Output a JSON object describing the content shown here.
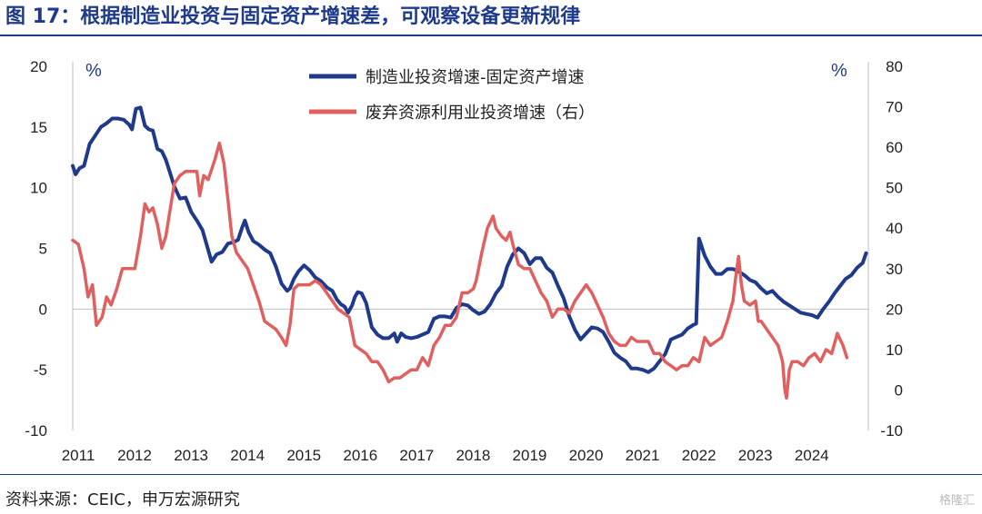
{
  "title": "图 17：根据制造业投资与固定资产增速差，可观察设备更新规律",
  "source": "资料来源：CEIC，申万宏源研究",
  "watermark": "格隆汇",
  "chart_data": {
    "type": "line",
    "x_ticks": [
      "2011",
      "2012",
      "2013",
      "2014",
      "2015",
      "2016",
      "2017",
      "2018",
      "2019",
      "2020",
      "2021",
      "2022",
      "2023",
      "2024"
    ],
    "left_axis": {
      "unit": "%",
      "range": [
        -10,
        20
      ],
      "ticks": [
        20,
        15,
        10,
        5,
        0,
        -5,
        -10
      ]
    },
    "right_axis": {
      "unit": "%",
      "range": [
        -10,
        80
      ],
      "ticks": [
        80,
        70,
        60,
        50,
        40,
        30,
        20,
        10,
        0,
        -10
      ]
    },
    "legend_position": "top-center",
    "series": [
      {
        "name": "制造业投资增速-固定资产增速",
        "axis": "left",
        "color": "#1f3a8a",
        "points": [
          [
            2011.0,
            11.8
          ],
          [
            2011.05,
            11.1
          ],
          [
            2011.12,
            11.6
          ],
          [
            2011.2,
            11.8
          ],
          [
            2011.3,
            13.6
          ],
          [
            2011.4,
            14.3
          ],
          [
            2011.5,
            15.0
          ],
          [
            2011.6,
            15.3
          ],
          [
            2011.7,
            15.7
          ],
          [
            2011.8,
            15.7
          ],
          [
            2011.9,
            15.6
          ],
          [
            2012.0,
            15.2
          ],
          [
            2012.05,
            14.8
          ],
          [
            2012.12,
            16.5
          ],
          [
            2012.2,
            16.6
          ],
          [
            2012.28,
            15.1
          ],
          [
            2012.35,
            14.8
          ],
          [
            2012.42,
            14.7
          ],
          [
            2012.5,
            13.2
          ],
          [
            2012.58,
            13.0
          ],
          [
            2012.65,
            12.3
          ],
          [
            2012.72,
            11.3
          ],
          [
            2012.8,
            10.1
          ],
          [
            2012.9,
            9.1
          ],
          [
            2013.0,
            9.2
          ],
          [
            2013.1,
            8.0
          ],
          [
            2013.2,
            7.3
          ],
          [
            2013.3,
            6.5
          ],
          [
            2013.38,
            5.2
          ],
          [
            2013.46,
            3.9
          ],
          [
            2013.55,
            4.5
          ],
          [
            2013.65,
            4.7
          ],
          [
            2013.75,
            5.4
          ],
          [
            2013.85,
            5.5
          ],
          [
            2013.93,
            5.7
          ],
          [
            2014.0,
            6.7
          ],
          [
            2014.05,
            7.3
          ],
          [
            2014.12,
            6.3
          ],
          [
            2014.2,
            5.6
          ],
          [
            2014.3,
            5.3
          ],
          [
            2014.4,
            4.9
          ],
          [
            2014.5,
            4.6
          ],
          [
            2014.6,
            3.5
          ],
          [
            2014.7,
            2.1
          ],
          [
            2014.8,
            1.5
          ],
          [
            2014.85,
            1.7
          ],
          [
            2014.92,
            2.5
          ],
          [
            2015.0,
            3.1
          ],
          [
            2015.1,
            3.6
          ],
          [
            2015.2,
            3.2
          ],
          [
            2015.3,
            2.6
          ],
          [
            2015.4,
            2.3
          ],
          [
            2015.5,
            1.8
          ],
          [
            2015.6,
            1.5
          ],
          [
            2015.68,
            0.8
          ],
          [
            2015.75,
            0.4
          ],
          [
            2015.82,
            0.2
          ],
          [
            2015.88,
            -0.3
          ],
          [
            2015.95,
            0.3
          ],
          [
            2016.0,
            1.0
          ],
          [
            2016.05,
            1.4
          ],
          [
            2016.12,
            1.3
          ],
          [
            2016.2,
            0.5
          ],
          [
            2016.3,
            -1.5
          ],
          [
            2016.4,
            -2.1
          ],
          [
            2016.5,
            -2.4
          ],
          [
            2016.6,
            -2.4
          ],
          [
            2016.7,
            -2.0
          ],
          [
            2016.75,
            -2.7
          ],
          [
            2016.82,
            -2.0
          ],
          [
            2016.9,
            -2.3
          ],
          [
            2017.0,
            -2.4
          ],
          [
            2017.1,
            -2.3
          ],
          [
            2017.2,
            -2.1
          ],
          [
            2017.3,
            -1.9
          ],
          [
            2017.4,
            -0.8
          ],
          [
            2017.5,
            -0.6
          ],
          [
            2017.6,
            -0.6
          ],
          [
            2017.7,
            -0.7
          ],
          [
            2017.8,
            0.1
          ],
          [
            2017.9,
            0.4
          ],
          [
            2018.0,
            0.3
          ],
          [
            2018.1,
            -0.1
          ],
          [
            2018.2,
            -0.4
          ],
          [
            2018.3,
            -0.2
          ],
          [
            2018.4,
            0.4
          ],
          [
            2018.5,
            1.3
          ],
          [
            2018.6,
            1.9
          ],
          [
            2018.7,
            3.5
          ],
          [
            2018.8,
            4.5
          ],
          [
            2018.9,
            5.0
          ],
          [
            2019.0,
            4.6
          ],
          [
            2019.1,
            3.7
          ],
          [
            2019.2,
            4.2
          ],
          [
            2019.3,
            4.2
          ],
          [
            2019.4,
            3.4
          ],
          [
            2019.5,
            3.0
          ],
          [
            2019.6,
            1.9
          ],
          [
            2019.7,
            0.9
          ],
          [
            2019.8,
            -0.6
          ],
          [
            2019.9,
            -1.7
          ],
          [
            2020.0,
            -2.5
          ],
          [
            2020.1,
            -2.0
          ],
          [
            2020.2,
            -1.5
          ],
          [
            2020.3,
            -1.6
          ],
          [
            2020.4,
            -1.9
          ],
          [
            2020.5,
            -2.7
          ],
          [
            2020.6,
            -3.6
          ],
          [
            2020.7,
            -4.0
          ],
          [
            2020.8,
            -4.3
          ],
          [
            2020.9,
            -4.9
          ],
          [
            2021.0,
            -4.9
          ],
          [
            2021.1,
            -5.0
          ],
          [
            2021.2,
            -5.2
          ],
          [
            2021.3,
            -4.9
          ],
          [
            2021.4,
            -4.3
          ],
          [
            2021.5,
            -3.7
          ],
          [
            2021.6,
            -2.5
          ],
          [
            2021.7,
            -2.3
          ],
          [
            2021.8,
            -2.1
          ],
          [
            2021.9,
            -1.6
          ],
          [
            2022.0,
            -1.3
          ],
          [
            2022.05,
            -1.2
          ],
          [
            2022.1,
            5.8
          ],
          [
            2022.2,
            4.4
          ],
          [
            2022.3,
            3.5
          ],
          [
            2022.4,
            2.9
          ],
          [
            2022.5,
            2.9
          ],
          [
            2022.6,
            3.3
          ],
          [
            2022.7,
            3.3
          ],
          [
            2022.8,
            3.1
          ],
          [
            2022.9,
            2.8
          ],
          [
            2023.0,
            2.4
          ],
          [
            2023.1,
            2.2
          ],
          [
            2023.2,
            1.7
          ],
          [
            2023.3,
            1.3
          ],
          [
            2023.4,
            1.5
          ],
          [
            2023.5,
            1.0
          ],
          [
            2023.6,
            0.6
          ],
          [
            2023.7,
            0.3
          ],
          [
            2023.8,
            0.0
          ],
          [
            2023.9,
            -0.3
          ],
          [
            2024.0,
            -0.4
          ],
          [
            2024.1,
            -0.5
          ],
          [
            2024.2,
            -0.7
          ],
          [
            2024.3,
            0.0
          ],
          [
            2024.4,
            0.6
          ],
          [
            2024.5,
            1.3
          ],
          [
            2024.6,
            1.9
          ],
          [
            2024.7,
            2.5
          ],
          [
            2024.8,
            2.8
          ],
          [
            2024.9,
            3.4
          ],
          [
            2025.0,
            3.8
          ],
          [
            2025.06,
            4.6
          ]
        ]
      },
      {
        "name": "废弃资源利用业投资增速（右）",
        "axis": "right",
        "color": "#e06060",
        "points": [
          [
            2011.0,
            37
          ],
          [
            2011.1,
            36
          ],
          [
            2011.2,
            30
          ],
          [
            2011.27,
            23
          ],
          [
            2011.35,
            26
          ],
          [
            2011.42,
            16
          ],
          [
            2011.52,
            18
          ],
          [
            2011.6,
            23
          ],
          [
            2011.68,
            21
          ],
          [
            2011.78,
            25
          ],
          [
            2011.88,
            30
          ],
          [
            2012.0,
            30
          ],
          [
            2012.1,
            30
          ],
          [
            2012.2,
            38
          ],
          [
            2012.28,
            46
          ],
          [
            2012.35,
            44
          ],
          [
            2012.42,
            45
          ],
          [
            2012.5,
            41
          ],
          [
            2012.58,
            35
          ],
          [
            2012.65,
            38
          ],
          [
            2012.72,
            44
          ],
          [
            2012.8,
            51
          ],
          [
            2012.9,
            53
          ],
          [
            2013.0,
            54
          ],
          [
            2013.1,
            54
          ],
          [
            2013.2,
            54
          ],
          [
            2013.25,
            48
          ],
          [
            2013.32,
            53
          ],
          [
            2013.4,
            52
          ],
          [
            2013.45,
            54
          ],
          [
            2013.52,
            57
          ],
          [
            2013.6,
            61
          ],
          [
            2013.68,
            56
          ],
          [
            2013.75,
            47
          ],
          [
            2013.82,
            38
          ],
          [
            2013.9,
            34
          ],
          [
            2014.0,
            32
          ],
          [
            2014.1,
            30
          ],
          [
            2014.2,
            26
          ],
          [
            2014.3,
            22
          ],
          [
            2014.4,
            17
          ],
          [
            2014.5,
            16
          ],
          [
            2014.6,
            15
          ],
          [
            2014.7,
            13
          ],
          [
            2014.78,
            11
          ],
          [
            2014.85,
            16
          ],
          [
            2014.92,
            25
          ],
          [
            2015.0,
            26
          ],
          [
            2015.1,
            26
          ],
          [
            2015.2,
            26
          ],
          [
            2015.3,
            27
          ],
          [
            2015.4,
            26
          ],
          [
            2015.5,
            24
          ],
          [
            2015.6,
            22
          ],
          [
            2015.7,
            20
          ],
          [
            2015.8,
            19
          ],
          [
            2015.9,
            18
          ],
          [
            2016.0,
            11
          ],
          [
            2016.1,
            10
          ],
          [
            2016.2,
            9
          ],
          [
            2016.3,
            7
          ],
          [
            2016.4,
            7
          ],
          [
            2016.5,
            5
          ],
          [
            2016.6,
            2
          ],
          [
            2016.7,
            3
          ],
          [
            2016.8,
            3
          ],
          [
            2016.9,
            4
          ],
          [
            2017.0,
            5
          ],
          [
            2017.1,
            5
          ],
          [
            2017.2,
            8
          ],
          [
            2017.3,
            6
          ],
          [
            2017.4,
            11
          ],
          [
            2017.5,
            13
          ],
          [
            2017.6,
            16
          ],
          [
            2017.7,
            16
          ],
          [
            2017.8,
            18
          ],
          [
            2017.9,
            24
          ],
          [
            2018.0,
            24
          ],
          [
            2018.1,
            25
          ],
          [
            2018.15,
            27
          ],
          [
            2018.25,
            34
          ],
          [
            2018.35,
            40
          ],
          [
            2018.45,
            43
          ],
          [
            2018.5,
            40
          ],
          [
            2018.6,
            38
          ],
          [
            2018.68,
            37
          ],
          [
            2018.75,
            39
          ],
          [
            2018.8,
            36
          ],
          [
            2018.9,
            31
          ],
          [
            2019.0,
            30
          ],
          [
            2019.1,
            30
          ],
          [
            2019.2,
            27
          ],
          [
            2019.3,
            24
          ],
          [
            2019.4,
            22
          ],
          [
            2019.5,
            18
          ],
          [
            2019.6,
            20
          ],
          [
            2019.7,
            20
          ],
          [
            2019.8,
            19
          ],
          [
            2019.9,
            22
          ],
          [
            2020.0,
            24
          ],
          [
            2020.1,
            26
          ],
          [
            2020.2,
            24
          ],
          [
            2020.3,
            21
          ],
          [
            2020.4,
            18
          ],
          [
            2020.5,
            14
          ],
          [
            2020.6,
            12
          ],
          [
            2020.7,
            11
          ],
          [
            2020.8,
            11
          ],
          [
            2020.9,
            13
          ],
          [
            2021.0,
            12
          ],
          [
            2021.1,
            12
          ],
          [
            2021.2,
            12
          ],
          [
            2021.3,
            9
          ],
          [
            2021.4,
            9
          ],
          [
            2021.5,
            7
          ],
          [
            2021.6,
            6
          ],
          [
            2021.7,
            5
          ],
          [
            2021.8,
            6
          ],
          [
            2021.9,
            6
          ],
          [
            2022.0,
            8
          ],
          [
            2022.1,
            7
          ],
          [
            2022.2,
            13
          ],
          [
            2022.3,
            11
          ],
          [
            2022.4,
            12
          ],
          [
            2022.5,
            13
          ],
          [
            2022.6,
            17
          ],
          [
            2022.7,
            22
          ],
          [
            2022.75,
            28
          ],
          [
            2022.8,
            33
          ],
          [
            2022.85,
            26
          ],
          [
            2022.9,
            22
          ],
          [
            2023.0,
            21
          ],
          [
            2023.1,
            22
          ],
          [
            2023.15,
            17
          ],
          [
            2023.2,
            17
          ],
          [
            2023.3,
            15
          ],
          [
            2023.4,
            13
          ],
          [
            2023.5,
            11
          ],
          [
            2023.58,
            7
          ],
          [
            2023.62,
            0
          ],
          [
            2023.65,
            -2
          ],
          [
            2023.7,
            5
          ],
          [
            2023.75,
            7
          ],
          [
            2023.85,
            7
          ],
          [
            2023.95,
            6
          ],
          [
            2024.05,
            8
          ],
          [
            2024.15,
            9
          ],
          [
            2024.25,
            7
          ],
          [
            2024.35,
            10
          ],
          [
            2024.45,
            9
          ],
          [
            2024.55,
            14
          ],
          [
            2024.65,
            11
          ],
          [
            2024.72,
            8
          ]
        ]
      }
    ]
  }
}
